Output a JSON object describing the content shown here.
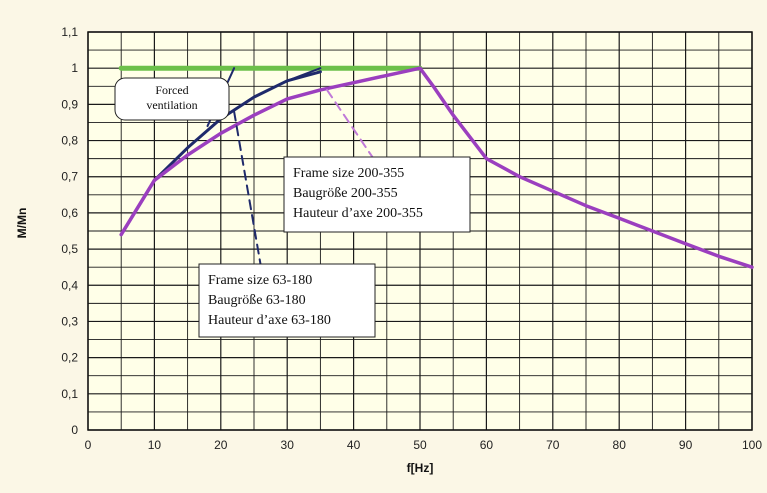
{
  "chart_data": {
    "type": "line",
    "title": "",
    "xlabel": "f[Hz]",
    "ylabel": "M/Mn",
    "xlim": [
      0,
      100
    ],
    "ylim": [
      0,
      1.1
    ],
    "grid": true,
    "x_ticks": [
      "0",
      "10",
      "20",
      "30",
      "40",
      "50",
      "60",
      "70",
      "80",
      "90",
      "100"
    ],
    "y_ticks": [
      "0",
      "0,1",
      "0,2",
      "0,3",
      "0,4",
      "0,5",
      "0,6",
      "0,7",
      "0,8",
      "0,9",
      "1",
      "1,1"
    ],
    "x_grid_step": 5,
    "y_grid_step": 0.05,
    "series": [
      {
        "key": "forced",
        "color": "#6cc04a",
        "style": "solid",
        "points": [
          [
            5,
            1.0
          ],
          [
            50,
            1.0
          ]
        ]
      },
      {
        "key": "small",
        "color": "#1f2a6b",
        "style": "solid",
        "points": [
          [
            5,
            0.54
          ],
          [
            10,
            0.69
          ],
          [
            15,
            0.78
          ],
          [
            20,
            0.86
          ],
          [
            25,
            0.92
          ],
          [
            30,
            0.965
          ],
          [
            35,
            0.99
          ]
        ]
      },
      {
        "key": "large",
        "color": "#9b3fbf",
        "style": "solid",
        "points": [
          [
            5,
            0.54
          ],
          [
            10,
            0.69
          ],
          [
            15,
            0.76
          ],
          [
            20,
            0.82
          ],
          [
            25,
            0.87
          ],
          [
            30,
            0.915
          ],
          [
            35,
            0.94
          ],
          [
            40,
            0.96
          ],
          [
            45,
            0.98
          ],
          [
            50,
            1.0
          ],
          [
            52,
            0.95
          ],
          [
            55,
            0.87
          ],
          [
            60,
            0.75
          ],
          [
            65,
            0.7
          ],
          [
            70,
            0.66
          ],
          [
            75,
            0.62
          ],
          [
            80,
            0.585
          ],
          [
            85,
            0.55
          ],
          [
            90,
            0.515
          ],
          [
            95,
            0.48
          ],
          [
            100,
            0.45
          ]
        ]
      },
      {
        "key": "small-transition",
        "color": "#1f2a6b",
        "style": "solid",
        "points": [
          [
            18,
            0.84
          ],
          [
            22,
            1.0
          ]
        ]
      },
      {
        "key": "large-transition",
        "color": "#1f2a6b",
        "style": "solid",
        "points": [
          [
            30,
            0.965
          ],
          [
            35,
            1.0
          ]
        ]
      },
      {
        "key": "small-leader",
        "color": "#1f2a6b",
        "style": "dashed",
        "points": [
          [
            22,
            0.88
          ],
          [
            27,
            0.35
          ]
        ]
      },
      {
        "key": "large-leader",
        "color": "#c07ad8",
        "style": "dashed",
        "points": [
          [
            36,
            0.94
          ],
          [
            43,
            0.75
          ]
        ]
      }
    ],
    "annotations": [
      {
        "key": "forced-ventilation",
        "lines": [
          "Forced",
          "ventilation"
        ]
      },
      {
        "key": "frame-200-355",
        "lines": [
          "Frame size 200-355",
          "Baugröße 200-355",
          "Hauteur d’axe 200-355"
        ]
      },
      {
        "key": "frame-63-180",
        "lines": [
          "Frame size 63-180",
          "Baugröße 63-180",
          "Hauteur d’axe 63-180"
        ]
      }
    ]
  }
}
